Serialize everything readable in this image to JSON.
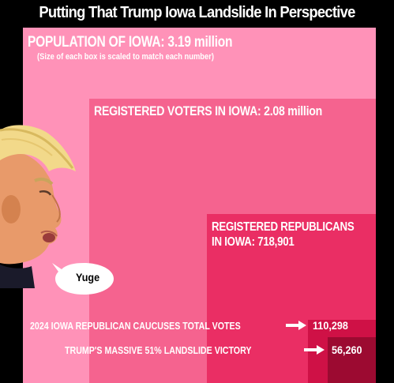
{
  "title": "Putting That Trump Iowa Landslide In Perspective",
  "subtitle": "(Size of each box is scaled to match each number)",
  "speech_bubble": "Yuge",
  "colors": {
    "background": "#000000",
    "population": "#ff92b8",
    "registered_voters": "#f5638f",
    "registered_republicans": "#ea2e64",
    "caucus_votes": "#cf1146",
    "trump_votes": "#9c0a31"
  },
  "chart_data": {
    "type": "nested-area",
    "items": [
      {
        "label": "POPULATION OF IOWA: 3.19 million",
        "value": 3190000
      },
      {
        "label": "REGISTERED VOTERS IN IOWA: 2.08 million",
        "value": 2080000
      },
      {
        "label": "REGISTERED REPUBLICANS IN IOWA: 718,901",
        "label_line1": "REGISTERED REPUBLICANS",
        "label_line2": "IN IOWA: 718,901",
        "value": 718901
      },
      {
        "label": "2024 IOWA REPUBLICAN CAUCUSES TOTAL VOTES",
        "value_label": "110,298",
        "value": 110298
      },
      {
        "label": "TRUMP'S MASSIVE 51% LANDSLIDE VICTORY",
        "value_label": "56,260",
        "value": 56260
      }
    ]
  }
}
